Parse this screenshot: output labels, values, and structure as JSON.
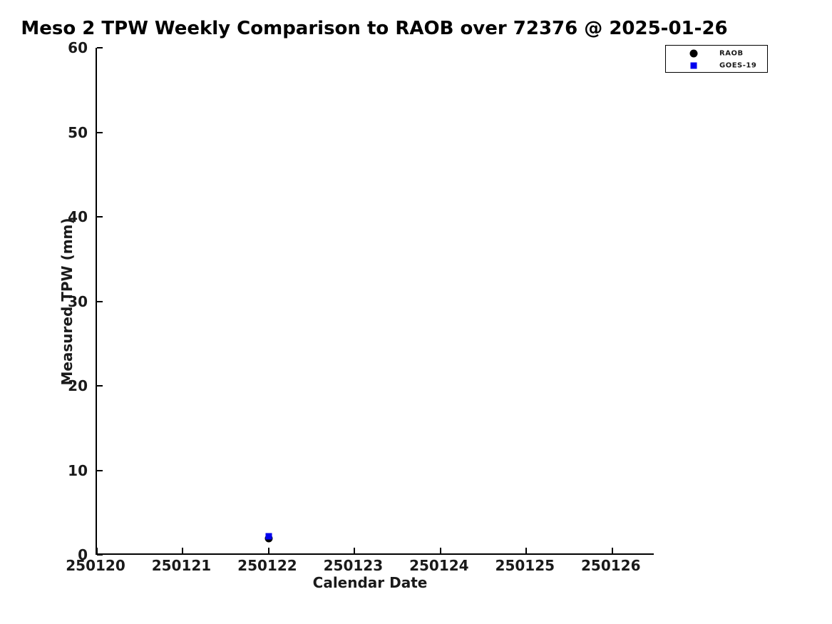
{
  "figure": {
    "title": "Meso 2 TPW Weekly Comparison to RAOB over 72376 @ 2025-01-26",
    "xlabel": "Calendar Date",
    "ylabel": "Measured TPW (mm)"
  },
  "legend": {
    "items": [
      {
        "label": "RAOB",
        "marker": "circle",
        "color": "#000000"
      },
      {
        "label": "GOES-19",
        "marker": "square",
        "color": "#0000EE"
      }
    ]
  },
  "chart_data": {
    "type": "scatter",
    "title": "Meso 2 TPW Weekly Comparison to RAOB over 72376 @ 2025-01-26",
    "xlabel": "Calendar Date",
    "ylabel": "Measured TPW (mm)",
    "xlim": [
      250120,
      250126.5
    ],
    "ylim": [
      0,
      60
    ],
    "x_ticks": [
      250120,
      250121,
      250122,
      250123,
      250124,
      250125,
      250126
    ],
    "y_ticks": [
      0,
      10,
      20,
      30,
      40,
      50,
      60
    ],
    "grid": false,
    "tick_direction": "in",
    "legend_position": "top-right outside axes",
    "series": [
      {
        "name": "RAOB",
        "marker": "circle",
        "color": "#000000",
        "marker_size_px": 11,
        "points": [
          {
            "x": 250122,
            "y": 1.9
          }
        ]
      },
      {
        "name": "GOES-19",
        "marker": "square",
        "color": "#0000EE",
        "marker_size_px": 9,
        "points": [
          {
            "x": 250122,
            "y": 2.2
          }
        ]
      }
    ]
  }
}
